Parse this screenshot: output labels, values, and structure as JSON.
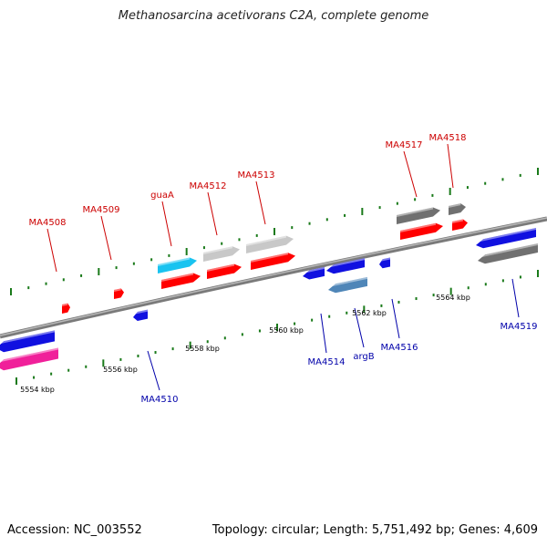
{
  "title": "Methanosarcina acetivorans C2A, complete genome",
  "footer": {
    "accession": "Accession: NC_003552",
    "summary": "Topology: circular; Length: 5,751,492 bp; Genes: 4,609"
  },
  "colors": {
    "backbone": "#808080",
    "tick": "#1a7a1a",
    "label_forward": "#cc0000",
    "label_reverse": "#0000aa",
    "red": "#ff0000",
    "blue": "#1010e0",
    "cyan": "#19c3f0",
    "lightgray": "#c8c8c8",
    "darkgray": "#707070",
    "steelblue": "#4f86b8",
    "pink": "#f0209a"
  },
  "ticks": [
    {
      "label": "5554 kbp"
    },
    {
      "label": "5556 kbp"
    },
    {
      "label": "5558 kbp"
    },
    {
      "label": "5560 kbp"
    },
    {
      "label": "5562 kbp"
    },
    {
      "label": "5564 kbp"
    }
  ],
  "labels": [
    {
      "text": "MA4508",
      "strand": "forward"
    },
    {
      "text": "MA4509",
      "strand": "forward"
    },
    {
      "text": "guaA",
      "strand": "forward"
    },
    {
      "text": "MA4512",
      "strand": "forward"
    },
    {
      "text": "MA4513",
      "strand": "forward"
    },
    {
      "text": "MA4517",
      "strand": "forward"
    },
    {
      "text": "MA4518",
      "strand": "forward"
    },
    {
      "text": "MA4510",
      "strand": "reverse"
    },
    {
      "text": "MA4514",
      "strand": "reverse"
    },
    {
      "text": "argB",
      "strand": "reverse"
    },
    {
      "text": "MA4516",
      "strand": "reverse"
    },
    {
      "text": "MA4519",
      "strand": "reverse"
    }
  ]
}
